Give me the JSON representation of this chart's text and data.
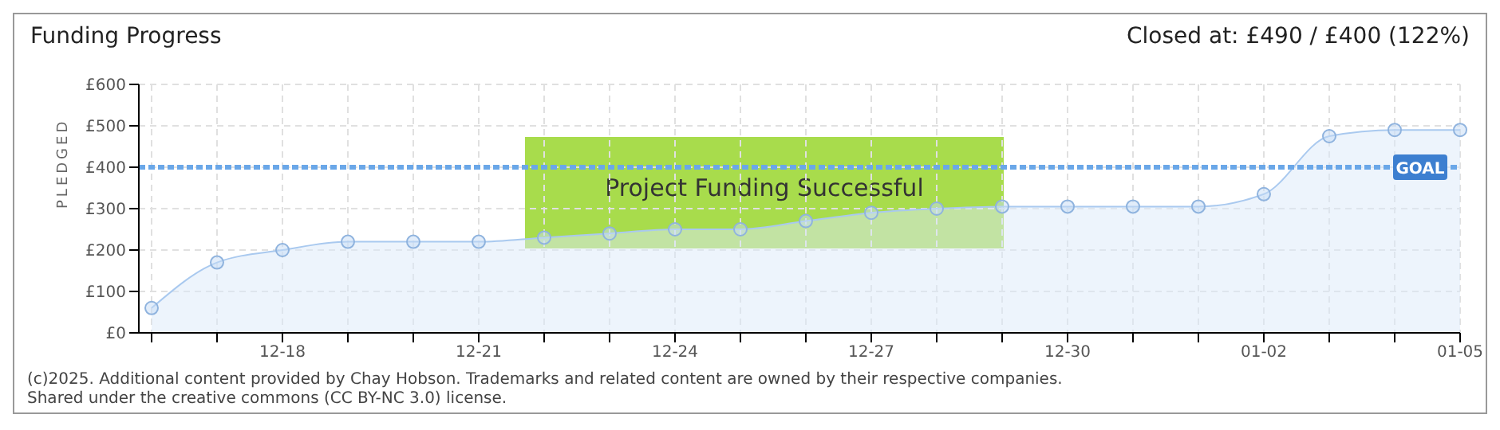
{
  "chart_data": {
    "type": "area",
    "title": "Funding Progress",
    "subtitle": "Closed at:  £490 / £400 (122%)",
    "ylabel": "PLEDGED",
    "categories": [
      null,
      null,
      "12-18",
      null,
      null,
      "12-21",
      null,
      null,
      "12-24",
      null,
      null,
      "12-27",
      null,
      null,
      "12-30",
      null,
      null,
      "01-02",
      null,
      null,
      "01-05"
    ],
    "series": [
      {
        "color": "#a9c9ef",
        "values": [
          60,
          170,
          200,
          220,
          220,
          220,
          230,
          240,
          250,
          250,
          270,
          290,
          300,
          305,
          305,
          305,
          305,
          335,
          475,
          490,
          490
        ]
      }
    ],
    "ylim": [
      0,
      600
    ],
    "yticks": [
      {
        "value": 0,
        "label": "£0"
      },
      {
        "value": 100,
        "label": "£100"
      },
      {
        "value": 200,
        "label": "£200"
      },
      {
        "value": 300,
        "label": "£300"
      },
      {
        "value": 400,
        "label": "£400"
      },
      {
        "value": 500,
        "label": "£500"
      },
      {
        "value": 600,
        "label": "£600"
      }
    ],
    "ref_lines": [
      {
        "axis": "y",
        "value": 400,
        "label": "GOAL",
        "color": "#6aa7e8",
        "line_style": "dashed"
      }
    ],
    "annotations": [
      "Project Funding Successful",
      "(c)2025. Additional content provided by Chay Hobson. Trademarks and related content are owned by their respective companies.",
      "Shared under the creative commons (CC BY-NC 3.0) license."
    ],
    "grid": true,
    "marker": "circle"
  }
}
